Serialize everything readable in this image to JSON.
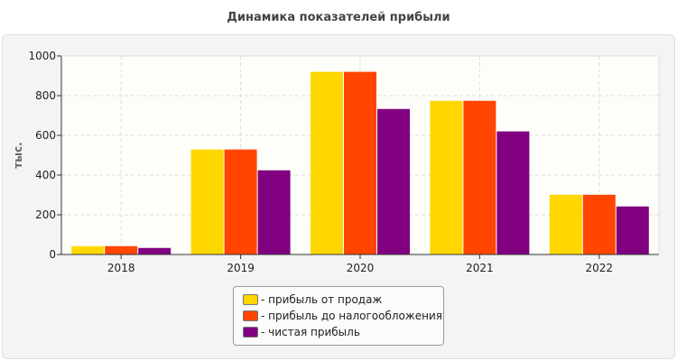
{
  "chart_data": {
    "type": "bar",
    "title": "Динамика показателей прибыли",
    "ylabel": "тыс.",
    "xlabel": "",
    "ylim": [
      0,
      1000
    ],
    "yticks": [
      0,
      200,
      400,
      600,
      800,
      1000
    ],
    "grid": true,
    "legend_position": "bottom",
    "categories": [
      "2018",
      "2019",
      "2020",
      "2021",
      "2022"
    ],
    "series": [
      {
        "name": "- прибыль от продаж",
        "color": "#FFD700",
        "values": [
          42,
          529,
          920,
          774,
          301
        ]
      },
      {
        "name": "- прибыль до налогообложения",
        "color": "#FF4500",
        "values": [
          42,
          529,
          920,
          774,
          301
        ]
      },
      {
        "name": "- чистая прибыль",
        "color": "#800080",
        "values": [
          33,
          424,
          733,
          620,
          242
        ]
      }
    ]
  }
}
